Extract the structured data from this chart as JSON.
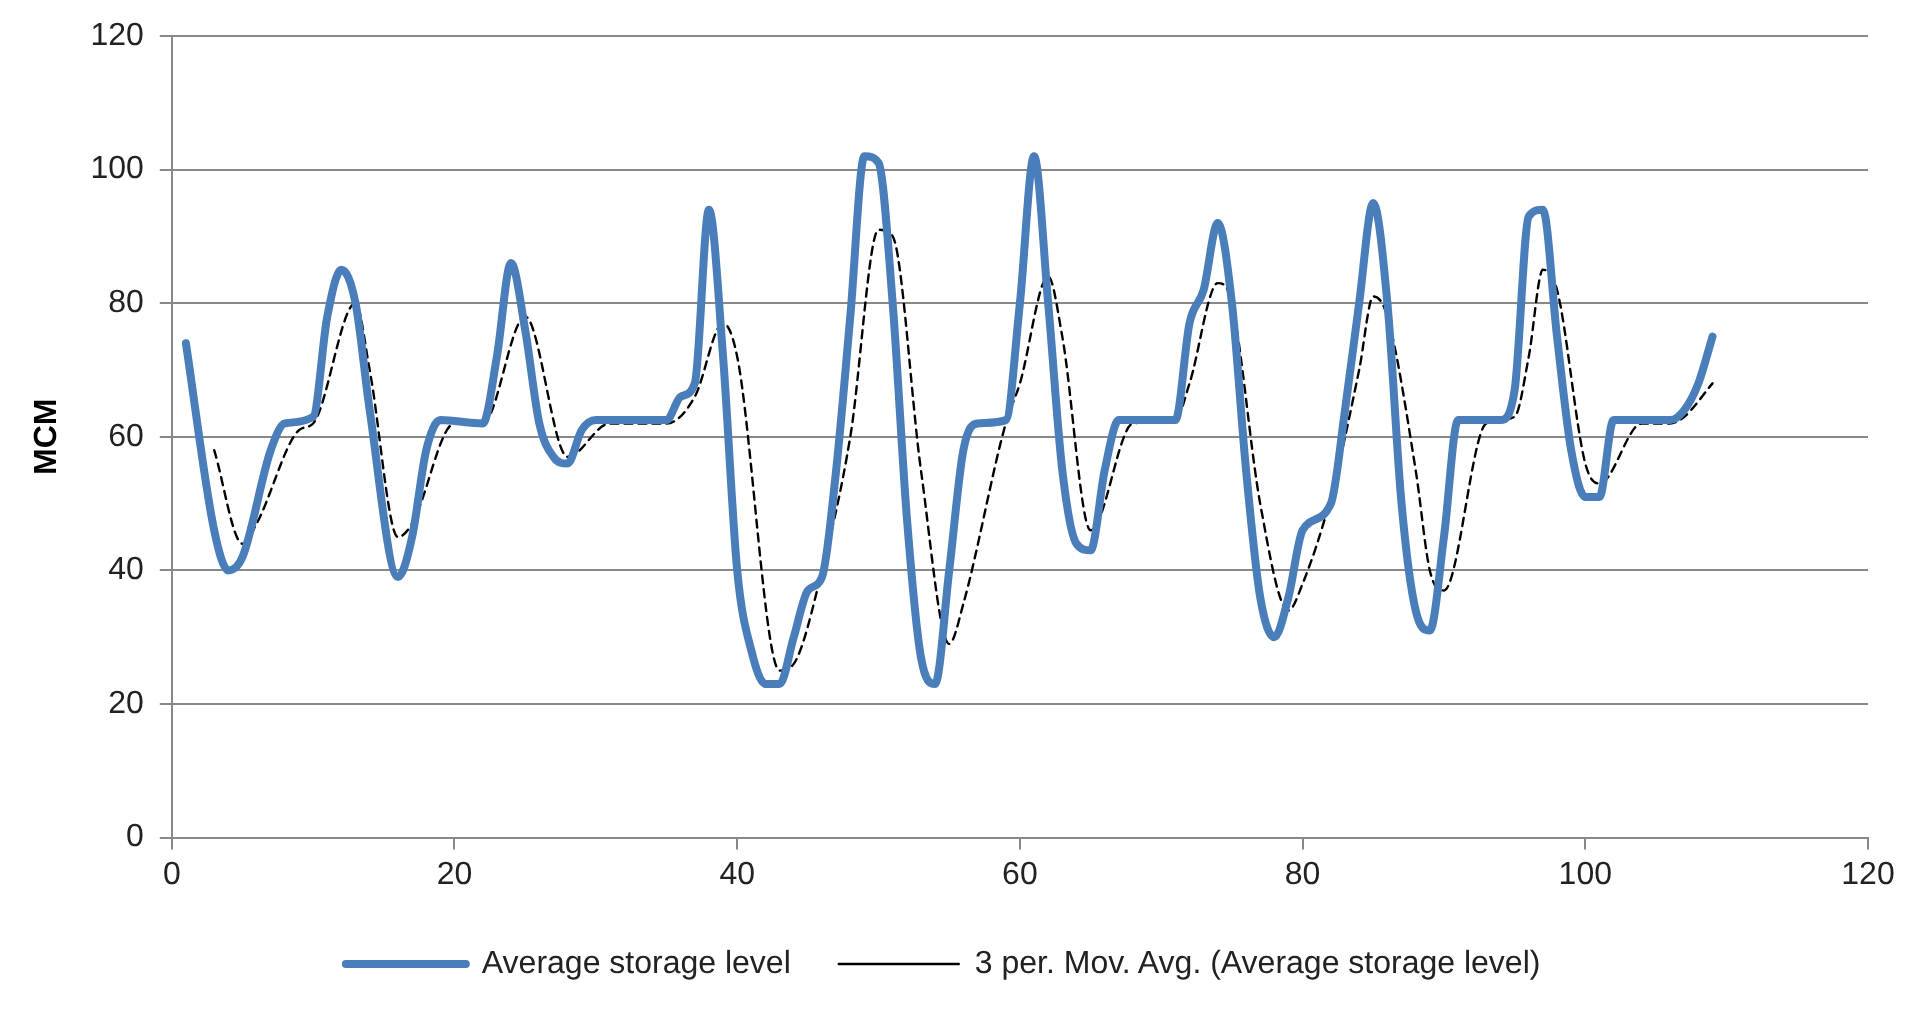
{
  "chart_data": {
    "type": "line",
    "ylabel": "MCM",
    "xlim": [
      0,
      120
    ],
    "xticks": [
      0,
      20,
      40,
      60,
      80,
      100,
      120
    ],
    "ylim": [
      0,
      120
    ],
    "yticks": [
      0,
      20,
      40,
      60,
      80,
      100,
      120
    ],
    "grid": "y",
    "legend": "bottom",
    "marker": "none",
    "series": [
      {
        "name": "Average storage level",
        "color": "#4a7ebb",
        "line_style": "solid",
        "x": [
          1,
          3,
          4,
          5,
          7,
          8,
          10,
          11,
          12,
          13,
          14,
          16,
          17,
          18,
          19,
          22,
          23,
          24,
          25,
          26,
          27,
          28,
          29,
          30,
          35,
          36,
          37,
          38,
          39,
          40,
          41,
          42,
          43,
          44,
          45,
          46,
          47,
          48,
          49,
          50,
          51,
          52,
          53,
          54,
          55,
          56,
          57,
          59,
          60,
          61,
          62,
          63,
          64,
          65,
          66,
          67,
          71,
          72,
          73,
          74,
          75,
          76,
          77,
          78,
          79,
          80,
          82,
          83,
          84,
          85,
          86,
          87,
          88,
          89,
          90,
          91,
          94,
          95,
          96,
          97,
          98,
          99,
          100,
          101,
          102,
          106,
          107,
          108,
          109
        ],
        "values": [
          74,
          46,
          40,
          42,
          58,
          62,
          63,
          78,
          85,
          80,
          64,
          39,
          45,
          58,
          62.5,
          62,
          72,
          86,
          76,
          62,
          57,
          56,
          61,
          62.5,
          62.5,
          66,
          68,
          94,
          72,
          40,
          28,
          23,
          23,
          30,
          37,
          39,
          55,
          78,
          102,
          101,
          80,
          48,
          27,
          23,
          40,
          58,
          62,
          62.5,
          80,
          102,
          80,
          55,
          44,
          43,
          55,
          62.5,
          62.5,
          77,
          82,
          92,
          80,
          55,
          36,
          30,
          36,
          46,
          50,
          64,
          80,
          95,
          80,
          50,
          34,
          31,
          45,
          62.5,
          62.5,
          67,
          93,
          94,
          75,
          58,
          51,
          51,
          62.5,
          62.5,
          64,
          68,
          75
        ]
      },
      {
        "name": "3 per. Mov. Avg. (Average storage level)",
        "color": "#000000",
        "line_style": "dashed",
        "x": [
          3,
          5,
          6,
          9,
          10,
          13,
          14,
          16,
          17,
          20,
          22,
          25,
          28,
          31,
          35,
          37,
          39,
          40,
          43,
          44,
          46,
          48,
          50,
          51,
          53,
          55,
          56,
          59,
          60,
          62,
          63,
          65,
          68,
          71,
          72,
          74,
          75,
          77,
          79,
          80,
          82,
          84,
          85,
          86,
          88,
          89,
          90,
          93,
          95,
          96,
          97,
          98,
          100,
          101,
          104,
          106,
          107,
          109
        ],
        "values": [
          58,
          44,
          47,
          61,
          62,
          80,
          70,
          45,
          47,
          62,
          62,
          78,
          57,
          62,
          62,
          66,
          77,
          72,
          25,
          26,
          40,
          60,
          91,
          90,
          55,
          29,
          35,
          62,
          68,
          84,
          75,
          46,
          62,
          62.5,
          68,
          83,
          80,
          50,
          34,
          38,
          51,
          70,
          81,
          78,
          55,
          40,
          37,
          62,
          63,
          72,
          85,
          82,
          56,
          53,
          62,
          62,
          63,
          68
        ]
      }
    ]
  }
}
